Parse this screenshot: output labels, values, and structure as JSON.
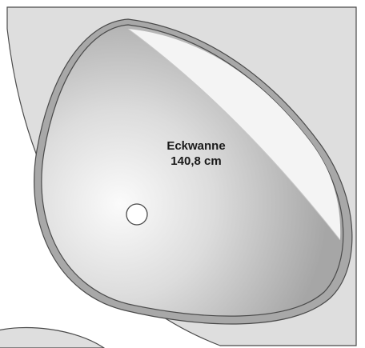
{
  "diagram": {
    "label": {
      "name": "Eckwanne",
      "size": "140,8 cm"
    },
    "colors": {
      "background": "#ffffff",
      "tub_body": "#dedede",
      "tub_rim": "#a8a8a8",
      "basin_light": "#fbfbfb",
      "basin_dark": "#a9a9a9",
      "highlight": "#f4f4f4",
      "outline": "#4a4a4a",
      "drain": "#ffffff"
    }
  }
}
